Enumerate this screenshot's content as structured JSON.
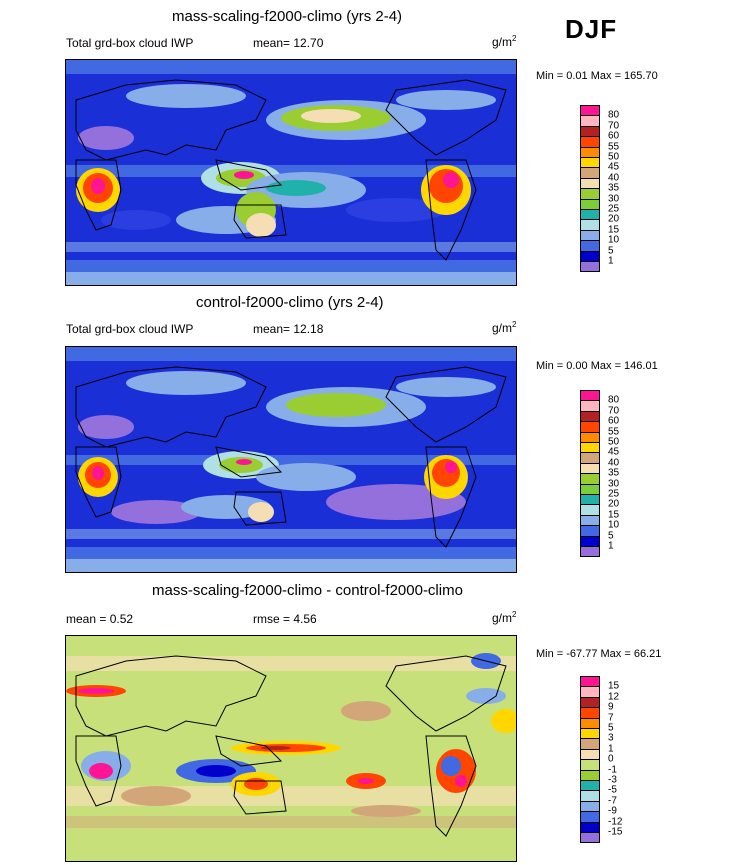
{
  "season": "DJF",
  "panels": [
    {
      "title": "mass-scaling-f2000-climo (yrs 2-4)",
      "left_label": "Total grd-box cloud IWP",
      "mean_label": "mean=  12.70",
      "rmse_label": "",
      "units": "g/m",
      "units_sup": "2",
      "minmax": "Min =   0.01 Max = 165.70",
      "legend_levels": [
        "80",
        "70",
        "60",
        "55",
        "50",
        "45",
        "40",
        "35",
        "30",
        "25",
        "20",
        "15",
        "10",
        "5",
        "1"
      ],
      "legend_colors": [
        "#ff1493",
        "#ffb6c1",
        "#b22222",
        "#ff4500",
        "#ff8c00",
        "#ffd700",
        "#d2a679",
        "#f5deb3",
        "#9acd32",
        "#7ccd3a",
        "#20b2aa",
        "#b0e0e6",
        "#87aee8",
        "#4169e1",
        "#0000cd",
        "#9370db"
      ]
    },
    {
      "title": "control-f2000-climo (yrs 2-4)",
      "left_label": "Total grd-box cloud IWP",
      "mean_label": "mean=  12.18",
      "rmse_label": "",
      "units": "g/m",
      "units_sup": "2",
      "minmax": "Min =   0.00 Max = 146.01",
      "legend_levels": [
        "80",
        "70",
        "60",
        "55",
        "50",
        "45",
        "40",
        "35",
        "30",
        "25",
        "20",
        "15",
        "10",
        "5",
        "1"
      ],
      "legend_colors": [
        "#ff1493",
        "#ffb6c1",
        "#b22222",
        "#ff4500",
        "#ff8c00",
        "#ffd700",
        "#d2a679",
        "#f5deb3",
        "#9acd32",
        "#7ccd3a",
        "#20b2aa",
        "#b0e0e6",
        "#87aee8",
        "#4169e1",
        "#0000cd",
        "#9370db"
      ]
    },
    {
      "title": "mass-scaling-f2000-climo - control-f2000-climo",
      "left_label": "mean =   0.52",
      "mean_label": "",
      "rmse_label": "rmse =   4.56",
      "units": "g/m",
      "units_sup": "2",
      "minmax": "Min = -67.77 Max =  66.21",
      "legend_levels": [
        "15",
        "12",
        "9",
        "7",
        "5",
        "3",
        "1",
        "0",
        "-1",
        "-3",
        "-5",
        "-7",
        "-9",
        "-12",
        "-15"
      ],
      "legend_colors": [
        "#ff1493",
        "#ffb6c1",
        "#b22222",
        "#ff4500",
        "#ff8c00",
        "#ffd700",
        "#d2a679",
        "#f5deb3",
        "#c8e07a",
        "#9acd32",
        "#20b2aa",
        "#b0e0e6",
        "#87aee8",
        "#4169e1",
        "#0000cd",
        "#9370db"
      ]
    }
  ]
}
